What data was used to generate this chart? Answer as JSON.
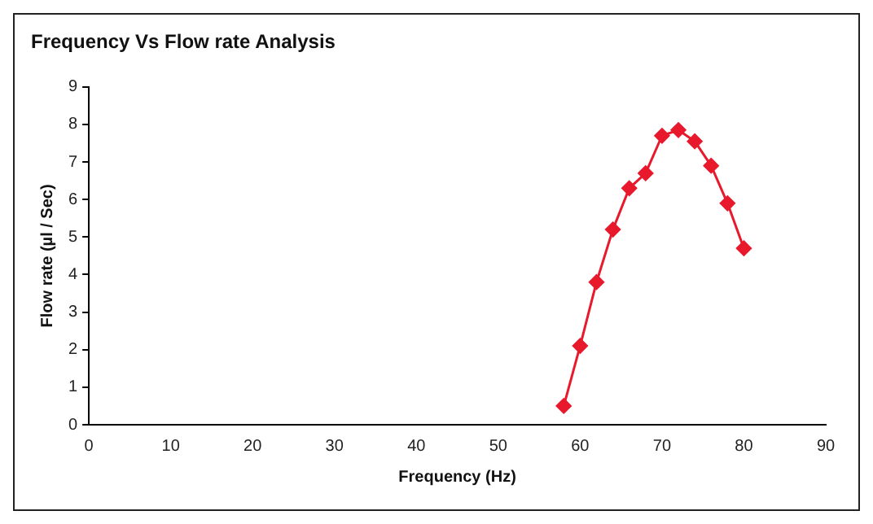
{
  "chart_data": {
    "type": "line",
    "title": "Frequency Vs Flow rate Analysis",
    "xlabel": "Frequency (Hz)",
    "ylabel": "Flow rate (µl / Sec)",
    "x": [
      58,
      60,
      62,
      64,
      66,
      68,
      70,
      72,
      74,
      76,
      78,
      80
    ],
    "series": [
      {
        "color": "#e8192c",
        "values": [
          0.5,
          2.1,
          3.8,
          5.2,
          6.3,
          6.7,
          7.7,
          7.85,
          7.55,
          6.9,
          5.9,
          4.7
        ]
      }
    ],
    "xlim": [
      0,
      90
    ],
    "xticks": [
      0,
      10,
      20,
      30,
      40,
      50,
      60,
      70,
      80,
      90
    ],
    "ylim": [
      0,
      9
    ],
    "yticks": [
      0,
      1,
      2,
      3,
      4,
      5,
      6,
      7,
      8,
      9
    ],
    "grid": false,
    "legend": false,
    "marker": "diamond",
    "line_style": "solid"
  }
}
